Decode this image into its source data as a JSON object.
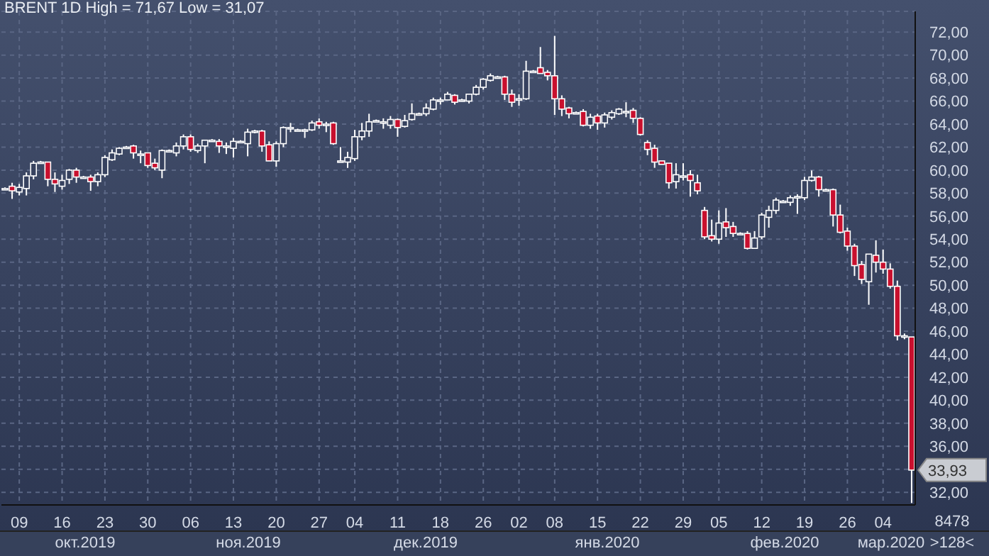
{
  "chart_data": {
    "type": "candlestick",
    "title": "BRENT 1D High = 71,67 Low = 31,07",
    "categories": [
      null,
      null,
      "09",
      null,
      null,
      null,
      null,
      null,
      "16",
      null,
      null,
      null,
      null,
      null,
      "23",
      null,
      null,
      null,
      null,
      null,
      "30",
      null,
      null,
      null,
      null,
      null,
      "06",
      null,
      null,
      null,
      null,
      null,
      "13",
      null,
      null,
      null,
      null,
      null,
      "20",
      null,
      null,
      null,
      null,
      null,
      "27",
      null,
      null,
      null,
      null,
      "04",
      null,
      null,
      null,
      null,
      null,
      "11",
      null,
      null,
      null,
      null,
      null,
      "18",
      null,
      null,
      null,
      null,
      null,
      "26",
      null,
      null,
      null,
      null,
      "02",
      null,
      null,
      null,
      null,
      "08",
      null,
      null,
      null,
      null,
      null,
      "15",
      null,
      null,
      null,
      null,
      null,
      "22",
      null,
      null,
      null,
      null,
      null,
      "29",
      null,
      null,
      null,
      null,
      "05",
      null,
      null,
      null,
      null,
      null,
      "12",
      null,
      null,
      null,
      null,
      null,
      "19",
      null,
      null,
      null,
      null,
      null,
      "26",
      null,
      null,
      null,
      null,
      "04",
      null,
      null,
      null,
      null
    ],
    "ohlc": [
      [
        58.4,
        58.5,
        58.3,
        58.4
      ],
      [
        58.6,
        58.9,
        57.5,
        58.2
      ],
      [
        58.1,
        58.8,
        57.8,
        58.5
      ],
      [
        58.4,
        59.8,
        57.8,
        59.5
      ],
      [
        59.5,
        60.8,
        59.2,
        60.6
      ],
      [
        60.6,
        60.8,
        60.6,
        60.7
      ],
      [
        60.7,
        60.7,
        58.6,
        59.2
      ],
      [
        59.2,
        59.8,
        58.1,
        58.8
      ],
      [
        58.6,
        59.6,
        58.3,
        59.1
      ],
      [
        59.2,
        60.1,
        58.8,
        60.0
      ],
      [
        60.0,
        60.2,
        58.9,
        59.4
      ],
      [
        59.4,
        59.5,
        59.3,
        59.4
      ],
      [
        59.4,
        59.6,
        58.2,
        59.0
      ],
      [
        59.0,
        59.8,
        58.6,
        59.6
      ],
      [
        59.6,
        61.3,
        59.4,
        61.1
      ],
      [
        60.9,
        61.8,
        60.8,
        61.5
      ],
      [
        61.4,
        62.0,
        61.3,
        61.9
      ],
      [
        61.9,
        62.1,
        61.9,
        62.0
      ],
      [
        62.1,
        62.2,
        61.0,
        61.5
      ],
      [
        61.4,
        61.7,
        60.6,
        61.4
      ],
      [
        61.5,
        61.5,
        60.2,
        60.4
      ],
      [
        60.6,
        61.0,
        60.0,
        60.2
      ],
      [
        60.0,
        61.8,
        59.3,
        61.7
      ],
      [
        61.7,
        61.8,
        61.6,
        61.7
      ],
      [
        61.5,
        62.4,
        61.2,
        62.1
      ],
      [
        62.1,
        63.1,
        61.8,
        62.9
      ],
      [
        62.9,
        63.1,
        61.6,
        61.8
      ],
      [
        61.7,
        62.3,
        61.5,
        62.1
      ],
      [
        62.1,
        62.6,
        60.6,
        62.6
      ],
      [
        62.6,
        62.7,
        62.5,
        62.6
      ],
      [
        62.5,
        62.7,
        61.5,
        62.1
      ],
      [
        62.1,
        62.4,
        61.4,
        62.1
      ],
      [
        61.9,
        62.8,
        61.1,
        62.5
      ],
      [
        62.5,
        62.6,
        62.4,
        62.5
      ],
      [
        62.3,
        63.6,
        61.2,
        63.3
      ],
      [
        63.3,
        63.5,
        63.2,
        63.4
      ],
      [
        63.4,
        63.5,
        61.6,
        62.1
      ],
      [
        62.2,
        62.5,
        60.8,
        60.8
      ],
      [
        60.8,
        62.5,
        60.3,
        62.3
      ],
      [
        62.3,
        63.8,
        62.0,
        63.7
      ],
      [
        63.7,
        64.1,
        63.3,
        63.7
      ],
      [
        63.5,
        63.6,
        63.4,
        63.5
      ],
      [
        63.5,
        63.6,
        62.8,
        63.5
      ],
      [
        63.5,
        64.3,
        63.4,
        64.1
      ],
      [
        64.2,
        64.5,
        63.6,
        63.9
      ],
      [
        64.0,
        64.2,
        63.3,
        64.0
      ],
      [
        64.1,
        64.2,
        62.2,
        62.3
      ],
      [
        60.7,
        62.0,
        60.7,
        60.8
      ],
      [
        60.7,
        61.6,
        60.2,
        61.1
      ],
      [
        61.0,
        63.5,
        60.8,
        62.9
      ],
      [
        62.9,
        64.1,
        62.6,
        63.4
      ],
      [
        63.4,
        64.9,
        62.9,
        64.2
      ],
      [
        64.3,
        64.4,
        64.2,
        64.3
      ],
      [
        64.2,
        64.5,
        63.6,
        64.2
      ],
      [
        63.9,
        64.7,
        63.6,
        64.4
      ],
      [
        64.4,
        64.5,
        62.9,
        63.7
      ],
      [
        63.8,
        64.8,
        63.7,
        64.3
      ],
      [
        64.4,
        65.8,
        64.3,
        64.9
      ],
      [
        64.9,
        65.0,
        64.8,
        64.9
      ],
      [
        64.9,
        65.8,
        64.7,
        65.4
      ],
      [
        65.3,
        66.3,
        65.2,
        66.1
      ],
      [
        66.1,
        66.3,
        65.7,
        66.1
      ],
      [
        66.1,
        66.8,
        66.1,
        66.6
      ],
      [
        66.5,
        66.6,
        65.7,
        65.9
      ],
      [
        66.1,
        66.2,
        66.0,
        66.1
      ],
      [
        66.0,
        66.6,
        65.8,
        66.6
      ],
      [
        66.6,
        67.4,
        66.5,
        67.2
      ],
      [
        67.2,
        68.0,
        67.0,
        67.9
      ],
      [
        67.8,
        68.4,
        67.7,
        68.2
      ],
      [
        68.1,
        68.2,
        68.0,
        68.1
      ],
      [
        68.1,
        68.2,
        66.1,
        66.6
      ],
      [
        66.6,
        67.0,
        65.5,
        65.9
      ],
      [
        66.2,
        66.6,
        65.6,
        66.2
      ],
      [
        66.2,
        69.5,
        66.1,
        68.6
      ],
      [
        68.6,
        68.7,
        68.5,
        68.6
      ],
      [
        68.9,
        70.7,
        68.4,
        68.4
      ],
      [
        68.5,
        68.7,
        67.8,
        68.2
      ],
      [
        68.2,
        71.67,
        64.8,
        66.2
      ],
      [
        66.2,
        66.5,
        64.7,
        65.3
      ],
      [
        65.4,
        65.5,
        64.5,
        64.9
      ],
      [
        65.0,
        65.1,
        64.9,
        65.0
      ],
      [
        65.1,
        65.3,
        63.8,
        63.9
      ],
      [
        63.9,
        64.9,
        63.6,
        64.6
      ],
      [
        64.7,
        64.9,
        63.5,
        64.1
      ],
      [
        64.1,
        65.0,
        63.7,
        64.8
      ],
      [
        64.6,
        65.2,
        64.4,
        65.0
      ],
      [
        64.9,
        65.4,
        64.8,
        65.3
      ],
      [
        65.1,
        65.9,
        64.6,
        65.1
      ],
      [
        65.2,
        65.4,
        64.1,
        64.5
      ],
      [
        64.5,
        64.6,
        63.0,
        63.1
      ],
      [
        62.4,
        62.6,
        61.3,
        61.8
      ],
      [
        61.9,
        62.2,
        60.2,
        60.7
      ],
      [
        60.8,
        60.8,
        60.5,
        60.5
      ],
      [
        60.6,
        60.6,
        58.4,
        58.9
      ],
      [
        59.0,
        60.6,
        58.4,
        59.6
      ],
      [
        59.5,
        60.6,
        59.1,
        59.5
      ],
      [
        59.6,
        60.0,
        57.7,
        59.1
      ],
      [
        58.9,
        59.6,
        57.9,
        58.2
      ],
      [
        56.5,
        56.8,
        54.0,
        54.2
      ],
      [
        54.3,
        55.7,
        53.8,
        54.0
      ],
      [
        54.0,
        56.5,
        53.6,
        55.4
      ],
      [
        55.5,
        56.7,
        54.2,
        55.0
      ],
      [
        55.1,
        55.5,
        54.2,
        54.5
      ],
      [
        54.5,
        54.6,
        54.4,
        54.5
      ],
      [
        54.5,
        54.7,
        53.1,
        53.2
      ],
      [
        53.2,
        54.7,
        53.2,
        54.1
      ],
      [
        54.2,
        56.3,
        54.0,
        56.1
      ],
      [
        55.9,
        56.9,
        55.0,
        56.5
      ],
      [
        56.5,
        57.6,
        56.2,
        57.4
      ],
      [
        57.3,
        57.4,
        57.2,
        57.3
      ],
      [
        57.2,
        57.8,
        56.9,
        57.6
      ],
      [
        57.7,
        57.9,
        56.2,
        57.7
      ],
      [
        57.6,
        59.4,
        57.4,
        59.1
      ],
      [
        59.1,
        59.97,
        59.0,
        59.4
      ],
      [
        59.4,
        59.5,
        57.7,
        58.3
      ],
      [
        58.3,
        58.4,
        58.2,
        58.3
      ],
      [
        58.3,
        58.4,
        55.1,
        56.1
      ],
      [
        56.1,
        57.0,
        54.5,
        54.6
      ],
      [
        54.7,
        55.0,
        53.0,
        53.4
      ],
      [
        53.4,
        53.6,
        50.8,
        51.7
      ],
      [
        51.8,
        52.1,
        50.1,
        50.5
      ],
      [
        50.3,
        52.7,
        48.3,
        52.7
      ],
      [
        52.6,
        53.9,
        51.1,
        52.0
      ],
      [
        52.0,
        53.1,
        51.0,
        51.4
      ],
      [
        51.4,
        51.9,
        49.7,
        49.9
      ],
      [
        49.9,
        50.4,
        45.2,
        45.6
      ],
      [
        45.6,
        45.8,
        45.3,
        45.6
      ],
      [
        45.5,
        45.5,
        31.07,
        33.93
      ]
    ],
    "ylim": [
      30.9,
      73.8
    ],
    "yticks": [
      {
        "value": 32,
        "label": "32,00"
      },
      {
        "value": 34,
        "label": null
      },
      {
        "value": 36,
        "label": "36,00"
      },
      {
        "value": 38,
        "label": "38,00"
      },
      {
        "value": 40,
        "label": "40,00"
      },
      {
        "value": 42,
        "label": "42,00"
      },
      {
        "value": 44,
        "label": "44,00"
      },
      {
        "value": 46,
        "label": "46,00"
      },
      {
        "value": 48,
        "label": "48,00"
      },
      {
        "value": 50,
        "label": "50,00"
      },
      {
        "value": 52,
        "label": "52,00"
      },
      {
        "value": 54,
        "label": "54,00"
      },
      {
        "value": 56,
        "label": "56,00"
      },
      {
        "value": 58,
        "label": "58,00"
      },
      {
        "value": 60,
        "label": "60,00"
      },
      {
        "value": 62,
        "label": "62,00"
      },
      {
        "value": 64,
        "label": "64,00"
      },
      {
        "value": 66,
        "label": "66,00"
      },
      {
        "value": 68,
        "label": "68,00"
      },
      {
        "value": 70,
        "label": "70,00"
      },
      {
        "value": 72,
        "label": "72,00"
      }
    ],
    "grid": true,
    "annotations": [
      "окт.2019",
      "ноя.2019",
      "дек.2019",
      "янв.2020",
      "фев.2020",
      "мар.2020",
      "8478",
      ">128<",
      "33,93"
    ]
  }
}
